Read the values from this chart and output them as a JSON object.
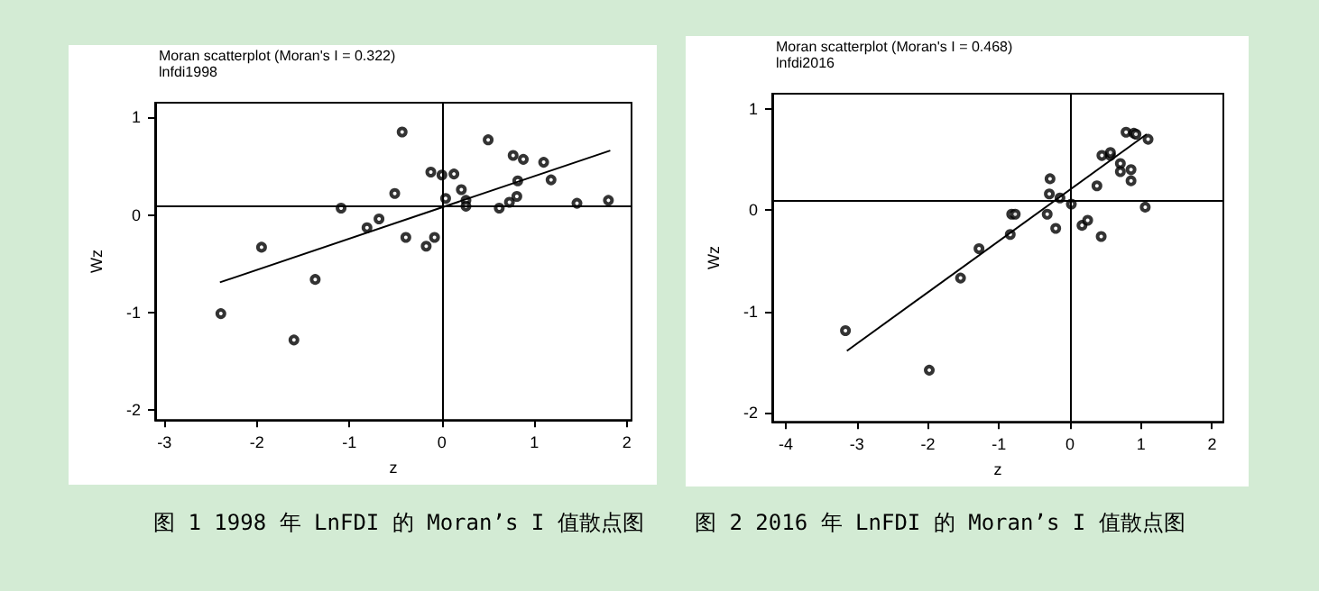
{
  "chart_data": [
    {
      "type": "scatter",
      "title": "Moran scatterplot (Moran's I = 0.322)",
      "subtitle": "lnfdi1998",
      "xlabel": "z",
      "ylabel": "Wz",
      "xlim": [
        -3.1,
        2.05
      ],
      "ylim": [
        -2.1,
        1.15
      ],
      "xticks": [
        -3,
        -2,
        -1,
        0,
        1,
        2
      ],
      "yticks": [
        -2,
        -1,
        0,
        1
      ],
      "grid": false,
      "marker": "circle",
      "series": [
        {
          "color": "#000000",
          "x": [
            -1.09,
            -0.68,
            -0.81,
            -0.39,
            -0.17,
            -0.08,
            -0.51,
            -0.43,
            -0.12,
            0.0,
            0.13,
            0.04,
            0.21,
            0.26,
            0.26,
            0.5,
            0.62,
            0.73,
            0.77,
            0.88,
            0.82,
            0.81,
            1.1,
            1.18,
            1.46,
            1.8,
            -1.95,
            -1.37,
            -2.39,
            -1.6
          ],
          "values": [
            0.07,
            -0.04,
            -0.13,
            -0.23,
            -0.32,
            -0.23,
            0.22,
            0.85,
            0.44,
            0.41,
            0.42,
            0.17,
            0.26,
            0.15,
            0.09,
            0.77,
            0.07,
            0.13,
            0.61,
            0.57,
            0.35,
            0.19,
            0.54,
            0.36,
            0.12,
            0.15,
            -0.33,
            -0.66,
            -1.01,
            -1.28
          ]
        },
        {
          "type": "line",
          "color": "#000000",
          "marker": "none",
          "x": [
            -2.4,
            1.82
          ],
          "values": [
            -0.69,
            0.66
          ]
        }
      ],
      "ref_lines": [
        {
          "axis": "x",
          "value": 0,
          "color": "#000000"
        },
        {
          "axis": "y",
          "value": 0.09,
          "color": "#000000"
        }
      ],
      "annotations": [
        "图 1 1998 年 LnFDI 的 Moran’s I 值散点图"
      ]
    },
    {
      "type": "scatter",
      "title": "Moran scatterplot (Moran's I = 0.468)",
      "subtitle": "lnfdi2016",
      "xlabel": "z",
      "ylabel": "Wz",
      "xlim": [
        -4.19,
        2.16
      ],
      "ylim": [
        -2.09,
        1.15
      ],
      "xticks": [
        -4,
        -3,
        -2,
        -1,
        0,
        1,
        2
      ],
      "yticks": [
        -2,
        -1,
        0,
        1
      ],
      "grid": false,
      "marker": "circle",
      "series": [
        {
          "color": "#000000",
          "x": [
            -3.16,
            -1.98,
            -1.54,
            -1.28,
            -0.84,
            -0.82,
            -0.77,
            -0.2,
            -0.32,
            -0.28,
            -0.29,
            -0.14,
            0.02,
            0.17,
            0.25,
            0.44,
            0.38,
            0.45,
            0.57,
            0.57,
            0.71,
            0.71,
            0.79,
            0.9,
            0.93,
            1.1,
            0.86,
            0.86,
            1.06
          ],
          "values": [
            -1.19,
            -1.58,
            -0.67,
            -0.38,
            -0.24,
            -0.04,
            -0.04,
            -0.18,
            -0.04,
            0.31,
            0.16,
            0.12,
            0.06,
            -0.15,
            -0.1,
            -0.26,
            0.24,
            0.54,
            0.54,
            0.57,
            0.46,
            0.38,
            0.77,
            0.76,
            0.75,
            0.7,
            0.4,
            0.29,
            0.03
          ]
        },
        {
          "type": "line",
          "color": "#000000",
          "marker": "none",
          "x": [
            -3.14,
            1.08
          ],
          "values": [
            -1.39,
            0.75
          ]
        }
      ],
      "ref_lines": [
        {
          "axis": "x",
          "value": 0,
          "color": "#000000"
        },
        {
          "axis": "y",
          "value": 0.1,
          "color": "#000000"
        }
      ],
      "annotations": [
        "图 2 2016 年 LnFDI 的 Moran’s I 值散点图"
      ]
    }
  ]
}
